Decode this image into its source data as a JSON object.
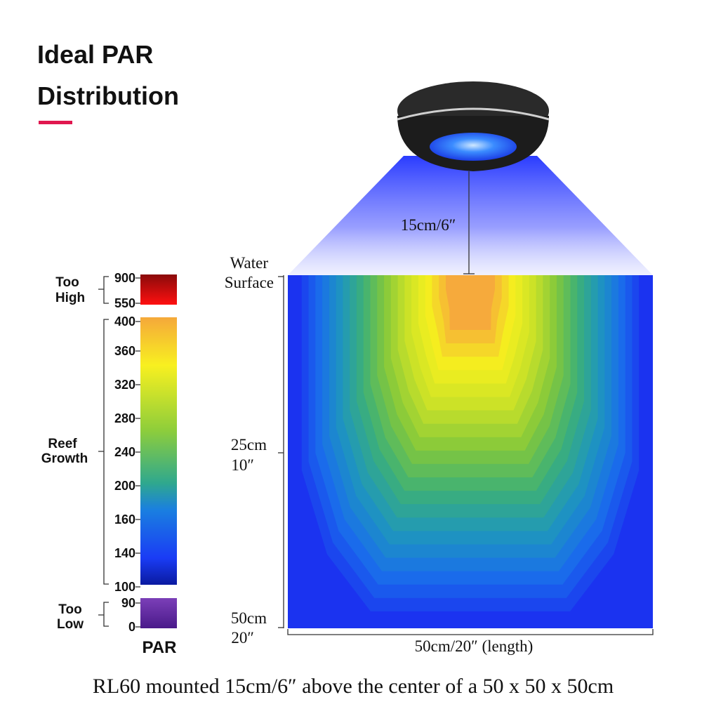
{
  "header": {
    "title": [
      "Ideal PAR",
      "Distribution"
    ]
  },
  "legend": {
    "too_high": {
      "label": [
        "Too",
        "High"
      ],
      "ticks": [
        "900",
        "550"
      ]
    },
    "reef_growth": {
      "label": [
        "Reef",
        "Growth"
      ],
      "ticks": [
        "400",
        "360",
        "320",
        "280",
        "240",
        "200",
        "160",
        "140",
        "100"
      ]
    },
    "too_low": {
      "label": [
        "Too",
        "Low"
      ],
      "ticks": [
        "90",
        "0"
      ]
    },
    "title": "PAR"
  },
  "diagram": {
    "mount_height": "15cm/6″",
    "depth_labels": [
      [
        "Water",
        "Surface"
      ],
      [
        "25cm",
        "10″"
      ],
      [
        "50cm",
        "20″"
      ]
    ],
    "length_label": "50cm/20″ (length)"
  },
  "caption": "RL60 mounted 15cm/6″ above the center of a 50 x 50 x 50cm"
}
